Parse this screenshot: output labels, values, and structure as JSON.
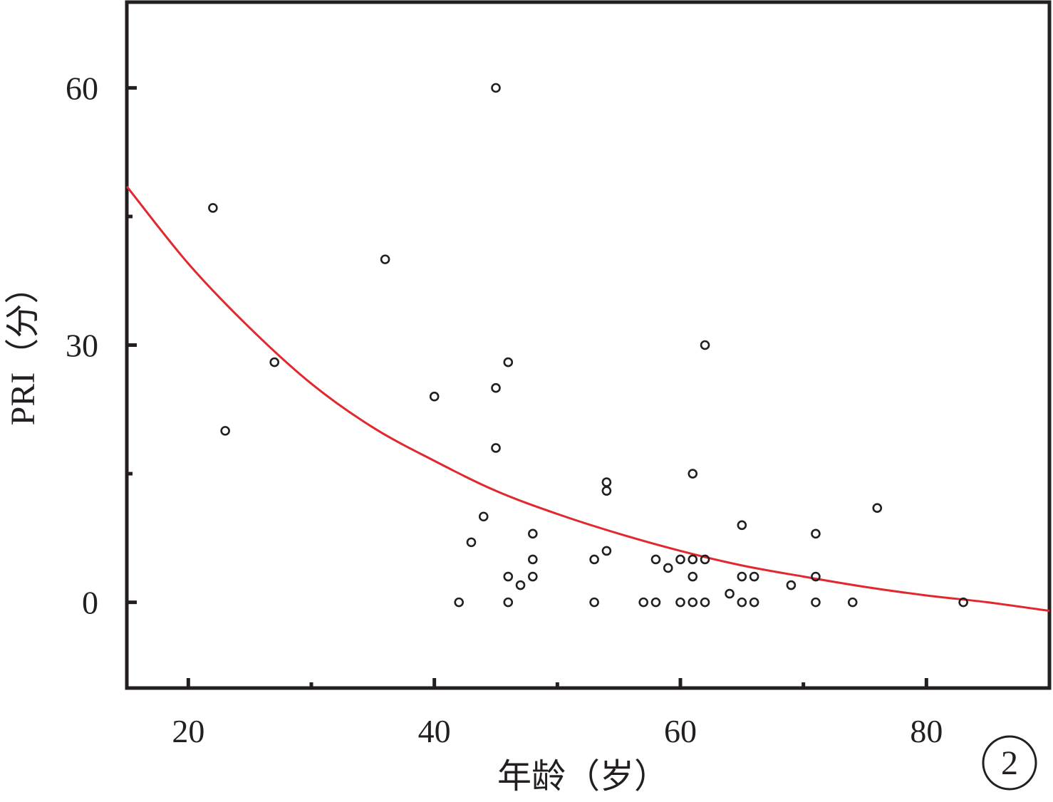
{
  "chart_data": {
    "type": "scatter",
    "xlabel": "年龄（岁）",
    "ylabel": "PRI（分）",
    "panel_label": "2",
    "xlim": [
      15,
      90
    ],
    "ylim": [
      -10,
      70
    ],
    "x_ticks": [
      20,
      40,
      60,
      80
    ],
    "x_minor_ticks": [
      30,
      50,
      70
    ],
    "y_ticks": [
      0,
      30,
      60
    ],
    "y_minor_ticks": [
      15,
      45
    ],
    "grid": false,
    "colors": {
      "points": "#231f20",
      "fit_line": "#e0282e"
    },
    "points": [
      {
        "x": 22,
        "y": 46
      },
      {
        "x": 23,
        "y": 20
      },
      {
        "x": 27,
        "y": 28
      },
      {
        "x": 36,
        "y": 40
      },
      {
        "x": 40,
        "y": 24
      },
      {
        "x": 42,
        "y": 0
      },
      {
        "x": 43,
        "y": 7
      },
      {
        "x": 44,
        "y": 10
      },
      {
        "x": 45,
        "y": 60
      },
      {
        "x": 45,
        "y": 25
      },
      {
        "x": 45,
        "y": 18
      },
      {
        "x": 46,
        "y": 28
      },
      {
        "x": 46,
        "y": 3
      },
      {
        "x": 46,
        "y": 0
      },
      {
        "x": 47,
        "y": 2
      },
      {
        "x": 48,
        "y": 8
      },
      {
        "x": 48,
        "y": 5
      },
      {
        "x": 48,
        "y": 3
      },
      {
        "x": 53,
        "y": 5
      },
      {
        "x": 53,
        "y": 0
      },
      {
        "x": 54,
        "y": 14
      },
      {
        "x": 54,
        "y": 13
      },
      {
        "x": 54,
        "y": 6
      },
      {
        "x": 57,
        "y": 0
      },
      {
        "x": 58,
        "y": 5
      },
      {
        "x": 58,
        "y": 0
      },
      {
        "x": 59,
        "y": 4
      },
      {
        "x": 60,
        "y": 5
      },
      {
        "x": 60,
        "y": 0
      },
      {
        "x": 61,
        "y": 15
      },
      {
        "x": 61,
        "y": 5
      },
      {
        "x": 61,
        "y": 3
      },
      {
        "x": 61,
        "y": 0
      },
      {
        "x": 62,
        "y": 30
      },
      {
        "x": 62,
        "y": 5
      },
      {
        "x": 62,
        "y": 0
      },
      {
        "x": 64,
        "y": 1
      },
      {
        "x": 65,
        "y": 9
      },
      {
        "x": 65,
        "y": 3
      },
      {
        "x": 65,
        "y": 0
      },
      {
        "x": 66,
        "y": 3
      },
      {
        "x": 66,
        "y": 0
      },
      {
        "x": 69,
        "y": 2
      },
      {
        "x": 71,
        "y": 8
      },
      {
        "x": 71,
        "y": 3
      },
      {
        "x": 71,
        "y": 0
      },
      {
        "x": 74,
        "y": 0
      },
      {
        "x": 76,
        "y": 11
      },
      {
        "x": 83,
        "y": 0
      }
    ],
    "fit_curve": {
      "x": [
        15,
        20,
        25,
        30,
        35,
        40,
        45,
        50,
        55,
        60,
        65,
        70,
        75,
        80,
        85,
        90
      ],
      "y": [
        48.5,
        39.5,
        32.0,
        25.5,
        20.4,
        16.5,
        13.0,
        10.3,
        8.0,
        6.0,
        4.3,
        3.0,
        1.8,
        0.8,
        0,
        -1.0
      ]
    }
  }
}
